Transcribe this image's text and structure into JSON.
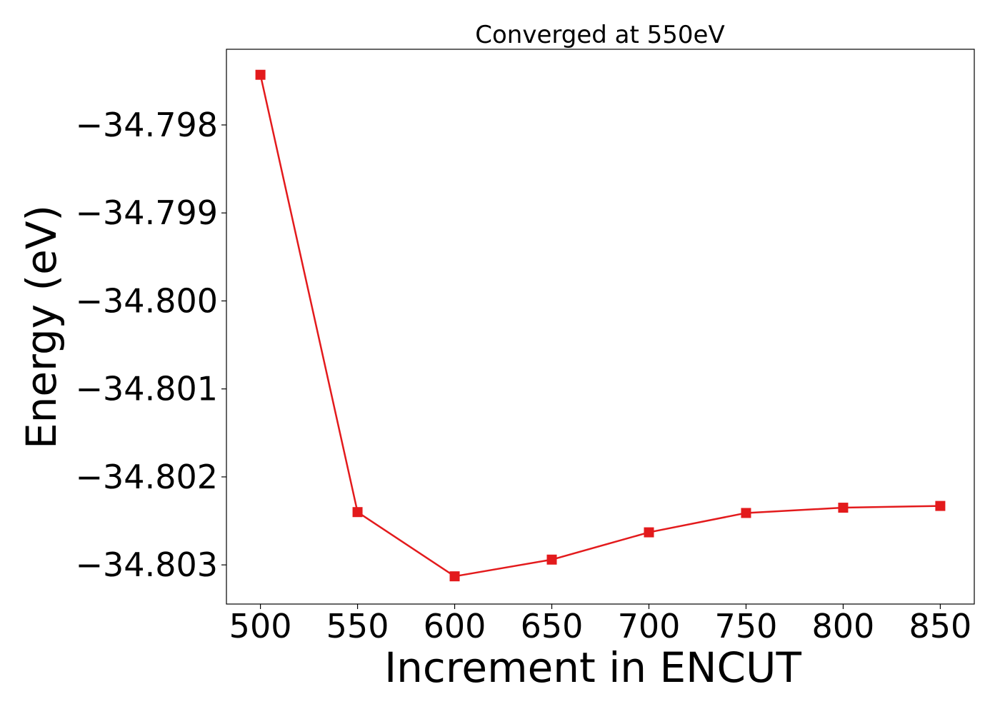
{
  "chart_data": {
    "type": "line",
    "title": "Converged at 550eV",
    "xlabel": "Increment in ENCUT",
    "ylabel": "Energy (eV)",
    "x": [
      500,
      550,
      600,
      650,
      700,
      750,
      800,
      850
    ],
    "series": [
      {
        "values": [
          -34.79743,
          -34.8024,
          -34.80313,
          -34.80294,
          -34.80263,
          -34.80241,
          -34.80235,
          -34.80233
        ],
        "color": "#e31a1c",
        "marker": "square"
      }
    ],
    "xticks": [
      500,
      550,
      600,
      650,
      700,
      750,
      800,
      850
    ],
    "xtick_labels": [
      "500",
      "550",
      "600",
      "650",
      "700",
      "750",
      "800",
      "850"
    ],
    "yticks": [
      -34.798,
      -34.799,
      -34.8,
      -34.801,
      -34.802,
      -34.803
    ],
    "ytick_labels": [
      "−34.798",
      "−34.799",
      "−34.800",
      "−34.801",
      "−34.802",
      "−34.803"
    ],
    "xlim": [
      482.5,
      867.5
    ],
    "ylim": [
      -34.803445,
      -34.79714
    ],
    "grid": false,
    "legend": "none"
  }
}
